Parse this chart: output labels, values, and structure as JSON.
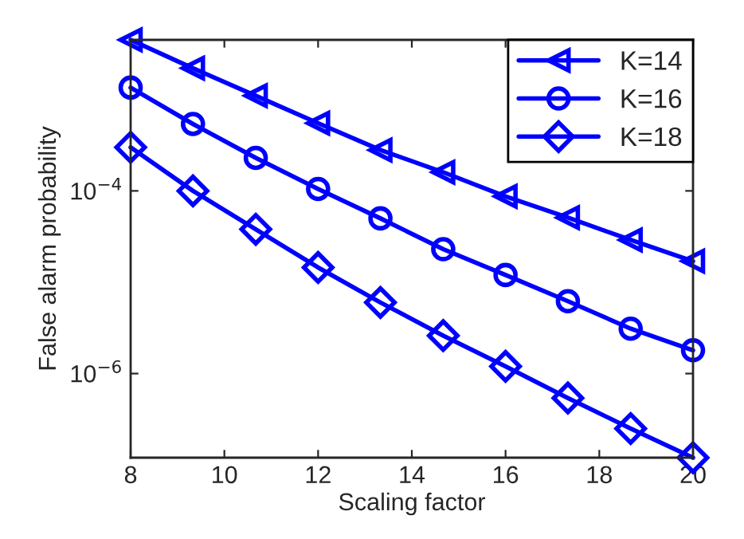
{
  "chart_data": {
    "type": "line",
    "xlabel": "Scaling factor",
    "ylabel": "False alarm probability",
    "x": [
      8,
      9.33,
      10.67,
      12,
      13.33,
      14.67,
      16,
      17.33,
      18.67,
      20
    ],
    "series": [
      {
        "name": "K=14",
        "color": "#0000ff",
        "marker": "triangle",
        "values": [
          0.0045,
          0.0022,
          0.0011,
          0.00055,
          0.00028,
          0.00016,
          8.7e-05,
          5.1e-05,
          2.9e-05,
          1.7e-05
        ]
      },
      {
        "name": "K=16",
        "color": "#0000ff",
        "marker": "circle",
        "values": [
          0.00135,
          0.00054,
          0.00023,
          0.000105,
          5e-05,
          2.3e-05,
          1.2e-05,
          6.2e-06,
          3.1e-06,
          1.8e-06
        ]
      },
      {
        "name": "K=18",
        "color": "#0000ff",
        "marker": "diamond",
        "values": [
          0.0003,
          0.0001,
          3.8e-05,
          1.45e-05,
          6e-06,
          2.6e-06,
          1.2e-06,
          5.4e-07,
          2.5e-07,
          1.2e-07
        ]
      }
    ],
    "log": "y",
    "xlim": [
      8,
      20
    ],
    "xticks": [
      8,
      10,
      12,
      14,
      16,
      18,
      20
    ],
    "ylim": [
      1.2e-07,
      0.0045
    ],
    "yticks": [
      {
        "value": 0.0001,
        "label": "10$^{−4}$"
      },
      {
        "value": 1e-06,
        "label": "10$^{−6}$"
      }
    ],
    "grid": false,
    "legend": "top right",
    "line_style": "solid"
  }
}
